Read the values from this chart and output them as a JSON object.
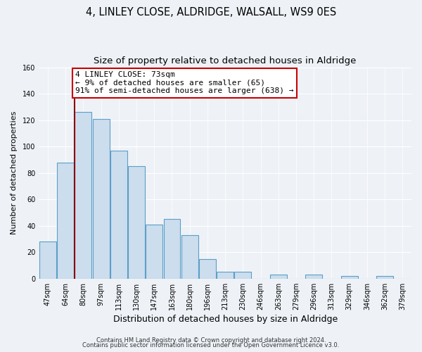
{
  "title": "4, LINLEY CLOSE, ALDRIDGE, WALSALL, WS9 0ES",
  "subtitle": "Size of property relative to detached houses in Aldridge",
  "xlabel": "Distribution of detached houses by size in Aldridge",
  "ylabel": "Number of detached properties",
  "categories": [
    "47sqm",
    "64sqm",
    "80sqm",
    "97sqm",
    "113sqm",
    "130sqm",
    "147sqm",
    "163sqm",
    "180sqm",
    "196sqm",
    "213sqm",
    "230sqm",
    "246sqm",
    "263sqm",
    "279sqm",
    "296sqm",
    "313sqm",
    "329sqm",
    "346sqm",
    "362sqm",
    "379sqm"
  ],
  "values": [
    28,
    88,
    126,
    121,
    97,
    85,
    41,
    45,
    33,
    15,
    5,
    5,
    0,
    3,
    0,
    3,
    0,
    2,
    0,
    2,
    0
  ],
  "bar_color": "#ccdded",
  "bar_edge_color": "#5b9fc8",
  "ylim": [
    0,
    160
  ],
  "yticks": [
    0,
    20,
    40,
    60,
    80,
    100,
    120,
    140,
    160
  ],
  "vline_x_idx": 1.5,
  "vline_color": "#8b0000",
  "annotation_title": "4 LINLEY CLOSE: 73sqm",
  "annotation_line1": "← 9% of detached houses are smaller (65)",
  "annotation_line2": "91% of semi-detached houses are larger (638) →",
  "annotation_box_facecolor": "#ffffff",
  "annotation_box_edgecolor": "#cc0000",
  "footer1": "Contains HM Land Registry data © Crown copyright and database right 2024.",
  "footer2": "Contains public sector information licensed under the Open Government Licence v3.0.",
  "background_color": "#eef2f7",
  "plot_background": "#eef2f7",
  "title_fontsize": 10.5,
  "subtitle_fontsize": 9.5,
  "ylabel_fontsize": 8,
  "xlabel_fontsize": 9,
  "tick_fontsize": 7,
  "footer_fontsize": 6,
  "annotation_fontsize": 8
}
